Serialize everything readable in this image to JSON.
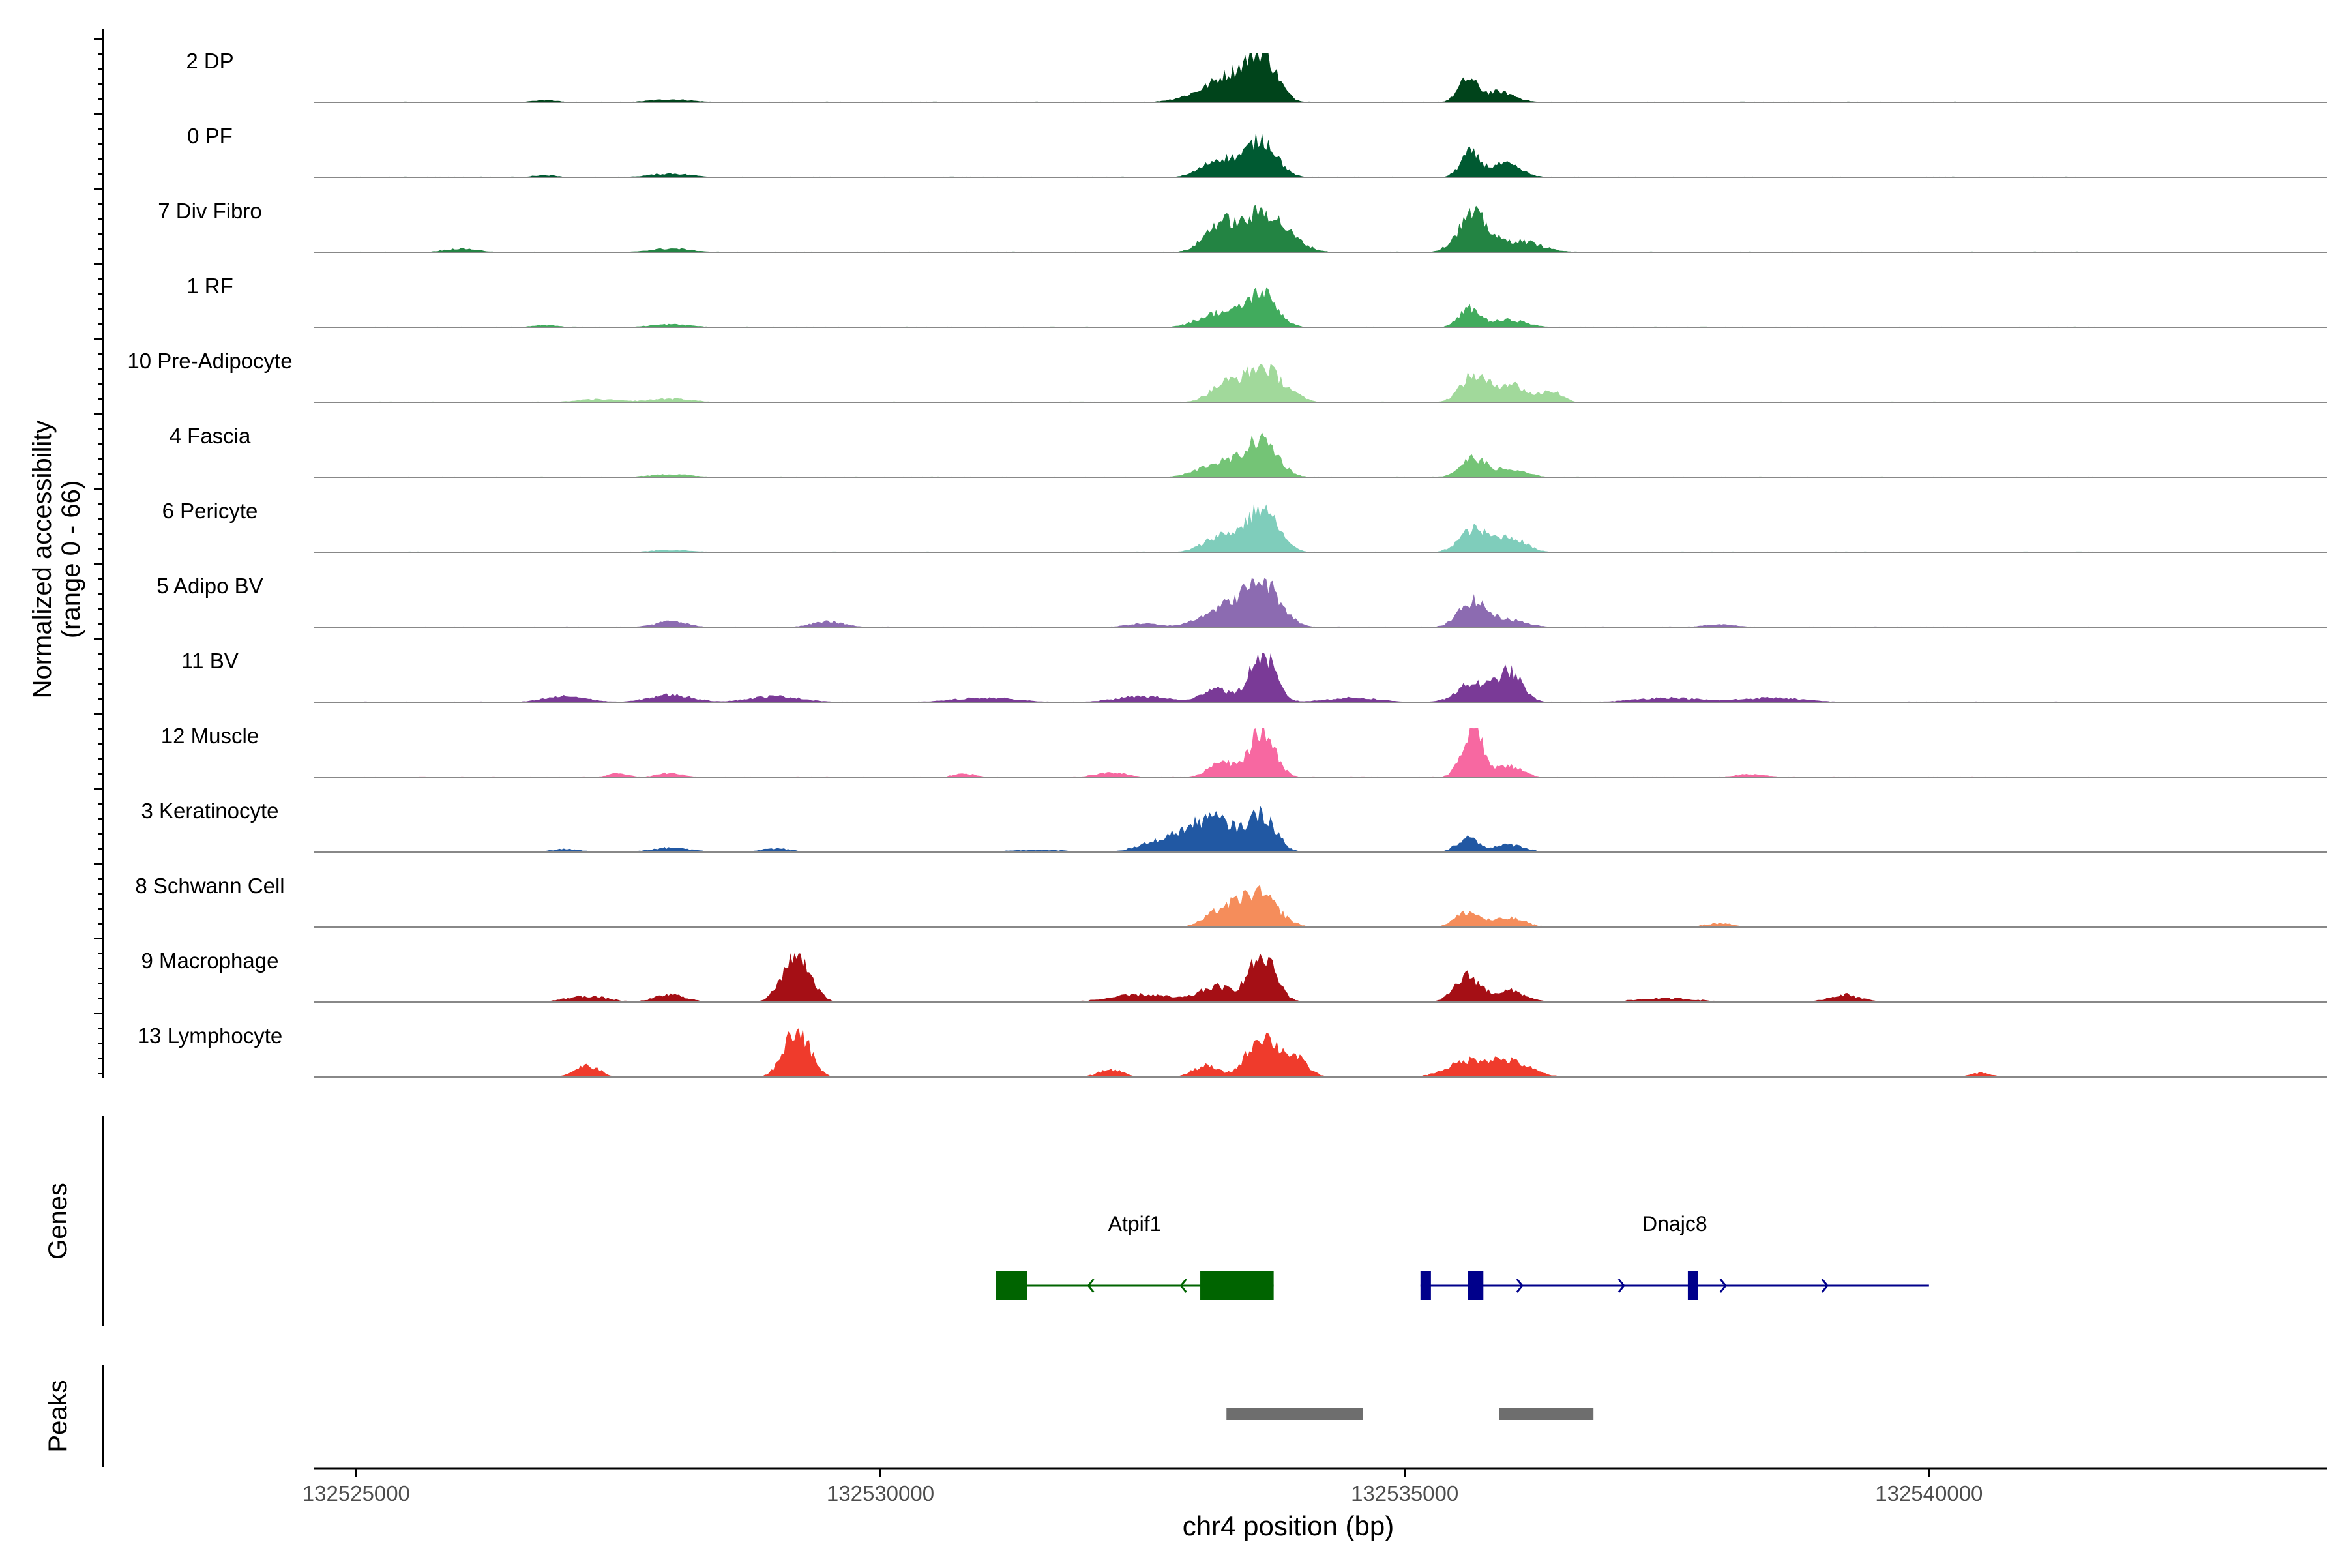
{
  "chart_data": {
    "type": "area",
    "title": "",
    "xlabel": "chr4 position (bp)",
    "ylabel": [
      "Normalized accessibility",
      "(range 0 - 66)"
    ],
    "xlim": [
      132524600,
      132543800
    ],
    "x_ticks": [
      132525000,
      132530000,
      132535000,
      132540000
    ],
    "x_tick_labels": [
      "132525000",
      "132530000",
      "132535000",
      "132540000"
    ],
    "ylim": [
      0,
      66
    ],
    "panel_labels": {
      "genes": "Genes",
      "peaks": "Peaks"
    },
    "tracks": [
      {
        "name": "2 DP",
        "color": "#00441b",
        "peaks": [
          [
            132533640,
            62,
            140
          ],
          [
            132533350,
            28,
            170
          ],
          [
            132533100,
            12,
            220
          ],
          [
            132535600,
            30,
            90
          ],
          [
            132535900,
            14,
            150
          ],
          [
            132528000,
            4,
            200
          ],
          [
            132526800,
            3,
            120
          ]
        ]
      },
      {
        "name": "0 PF",
        "color": "#005a32",
        "peaks": [
          [
            132533640,
            50,
            140
          ],
          [
            132533250,
            25,
            170
          ],
          [
            132535620,
            32,
            90
          ],
          [
            132535950,
            18,
            150
          ],
          [
            132528000,
            5,
            200
          ],
          [
            132526800,
            3,
            120
          ]
        ]
      },
      {
        "name": "7 Div Fibro",
        "color": "#238443",
        "peaks": [
          [
            132533640,
            50,
            160
          ],
          [
            132533250,
            40,
            150
          ],
          [
            132533900,
            15,
            160
          ],
          [
            132535650,
            50,
            140
          ],
          [
            132536100,
            15,
            200
          ],
          [
            132528000,
            5,
            200
          ],
          [
            132526000,
            5,
            160
          ]
        ]
      },
      {
        "name": "1 RF",
        "color": "#41ab5d",
        "peaks": [
          [
            132533640,
            45,
            140
          ],
          [
            132533250,
            20,
            200
          ],
          [
            132535620,
            25,
            100
          ],
          [
            132536000,
            10,
            160
          ],
          [
            132528000,
            4,
            200
          ],
          [
            132526800,
            3,
            120
          ]
        ]
      },
      {
        "name": "10 Pre-Adipocyte",
        "color": "#a1d99b",
        "peaks": [
          [
            132533640,
            45,
            150
          ],
          [
            132533300,
            25,
            150
          ],
          [
            132533900,
            10,
            120
          ],
          [
            132535650,
            35,
            120
          ],
          [
            132536000,
            25,
            150
          ],
          [
            132536400,
            15,
            100
          ],
          [
            132528000,
            5,
            200
          ],
          [
            132527300,
            4,
            200
          ]
        ]
      },
      {
        "name": "4 Fascia",
        "color": "#74c476",
        "peaks": [
          [
            132533640,
            48,
            150
          ],
          [
            132533250,
            20,
            200
          ],
          [
            132535650,
            25,
            120
          ],
          [
            132536000,
            10,
            160
          ],
          [
            132528000,
            4,
            200
          ]
        ]
      },
      {
        "name": "6 Pericyte",
        "color": "#7fcdbb",
        "peaks": [
          [
            132533640,
            58,
            150
          ],
          [
            132533250,
            22,
            160
          ],
          [
            132535650,
            30,
            130
          ],
          [
            132536000,
            20,
            150
          ],
          [
            132528000,
            3,
            200
          ]
        ]
      },
      {
        "name": "5 Adipo BV",
        "color": "#8c6bb1",
        "peaks": [
          [
            132533640,
            60,
            170
          ],
          [
            132533250,
            25,
            200
          ],
          [
            132535650,
            35,
            130
          ],
          [
            132536000,
            10,
            160
          ],
          [
            132528000,
            8,
            150
          ],
          [
            132529500,
            8,
            150
          ],
          [
            132532500,
            5,
            150
          ],
          [
            132538000,
            4,
            150
          ]
        ]
      },
      {
        "name": "11 BV",
        "color": "#7a3a97",
        "peaks": [
          [
            132533640,
            66,
            120
          ],
          [
            132533200,
            20,
            120
          ],
          [
            132535650,
            25,
            150
          ],
          [
            132536000,
            40,
            120
          ],
          [
            132528000,
            10,
            200
          ],
          [
            132527000,
            8,
            200
          ],
          [
            132529000,
            8,
            250
          ],
          [
            132531000,
            6,
            300
          ],
          [
            132532500,
            8,
            250
          ],
          [
            132534500,
            6,
            250
          ],
          [
            132537500,
            6,
            300
          ],
          [
            132538500,
            6,
            300
          ]
        ]
      },
      {
        "name": "12 Muscle",
        "color": "#f768a1",
        "peaks": [
          [
            132533640,
            64,
            120
          ],
          [
            132533250,
            20,
            120
          ],
          [
            132535650,
            66,
            100
          ],
          [
            132536000,
            15,
            120
          ],
          [
            132528000,
            6,
            120
          ],
          [
            132527500,
            5,
            100
          ],
          [
            132530800,
            5,
            100
          ],
          [
            132532200,
            6,
            150
          ],
          [
            132538300,
            4,
            150
          ]
        ]
      },
      {
        "name": "3 Keratinocyte",
        "color": "#2158a3",
        "peaks": [
          [
            132533640,
            48,
            130
          ],
          [
            132533200,
            40,
            200
          ],
          [
            132532800,
            20,
            250
          ],
          [
            132535600,
            20,
            100
          ],
          [
            132536000,
            10,
            150
          ],
          [
            132528000,
            6,
            200
          ],
          [
            132527000,
            4,
            150
          ],
          [
            132529000,
            5,
            150
          ],
          [
            132531500,
            3,
            300
          ]
        ]
      },
      {
        "name": "8 Schwann Cell",
        "color": "#f58d5b",
        "peaks": [
          [
            132533600,
            45,
            180
          ],
          [
            132533250,
            20,
            150
          ],
          [
            132535600,
            20,
            120
          ],
          [
            132536000,
            12,
            150
          ],
          [
            132538000,
            5,
            150
          ]
        ]
      },
      {
        "name": "9 Macrophage",
        "color": "#a50f15",
        "peaks": [
          [
            132529200,
            66,
            130
          ],
          [
            132533640,
            62,
            130
          ],
          [
            132533200,
            20,
            150
          ],
          [
            132532500,
            10,
            300
          ],
          [
            132535600,
            35,
            120
          ],
          [
            132536000,
            15,
            150
          ],
          [
            132528000,
            10,
            150
          ],
          [
            132527200,
            8,
            200
          ],
          [
            132539200,
            10,
            150
          ],
          [
            132537500,
            5,
            300
          ]
        ]
      },
      {
        "name": "13 Lymphocyte",
        "color": "#ef3b2c",
        "peaks": [
          [
            132529200,
            66,
            120
          ],
          [
            132533640,
            55,
            140
          ],
          [
            132533950,
            25,
            120
          ],
          [
            132533100,
            15,
            120
          ],
          [
            132535600,
            20,
            200
          ],
          [
            132536000,
            20,
            200
          ],
          [
            132527200,
            15,
            120
          ],
          [
            132532200,
            10,
            120
          ],
          [
            132540500,
            6,
            100
          ]
        ]
      }
    ],
    "genes": [
      {
        "name": "Atpif1",
        "color": "#006400",
        "strand": "-",
        "start": 132531100,
        "end": 132533750,
        "exons": [
          [
            132531100,
            132531400
          ],
          [
            132533050,
            132533750
          ]
        ]
      },
      {
        "name": "Dnajc8",
        "color": "#00008b",
        "strand": "+",
        "start": 132535150,
        "end": 132540000,
        "exons": [
          [
            132535150,
            132535250
          ],
          [
            132535600,
            132535750
          ],
          [
            132537700,
            132537800
          ]
        ]
      }
    ],
    "peaks_regions": [
      [
        132533300,
        132534600
      ],
      [
        132535900,
        132536800
      ]
    ]
  }
}
